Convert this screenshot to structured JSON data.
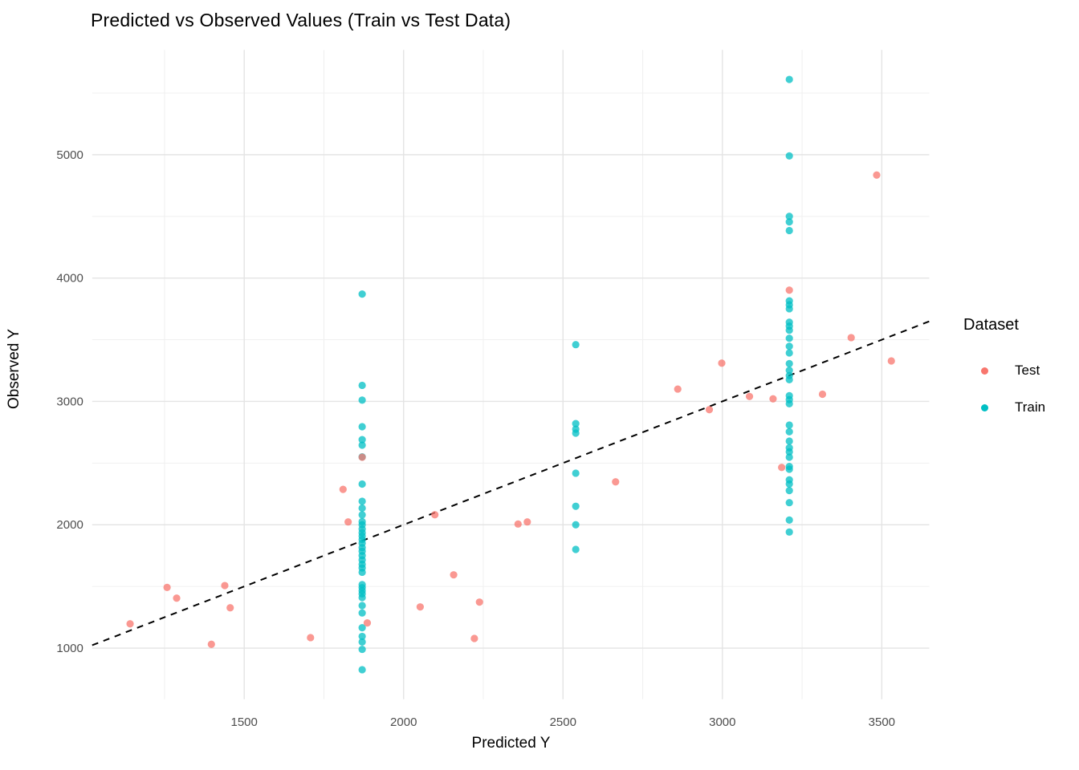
{
  "chart_data": {
    "type": "scatter",
    "title": "Predicted vs Observed Values (Train vs Test Data)",
    "xlabel": "Predicted Y",
    "ylabel": "Observed Y",
    "xlim": [
      1023,
      3649
    ],
    "ylim": [
      586,
      5849
    ],
    "x_major_ticks": [
      1500,
      2000,
      2500,
      3000,
      3500
    ],
    "x_minor_ticks": [
      1250,
      1750,
      2250,
      2750,
      3250
    ],
    "y_major_ticks": [
      1000,
      2000,
      3000,
      4000,
      5000
    ],
    "y_minor_ticks": [
      1500,
      2500,
      3500,
      4500,
      5500
    ],
    "grid": true,
    "background": "#ffffff",
    "grid_major_color": "#e4e4e4",
    "grid_minor_color": "#f0f0f0",
    "tick_label_color": "#4d4d4d",
    "reference_line": {
      "slope": 1,
      "intercept": 0,
      "style": "dashed",
      "color": "#000000"
    },
    "legend": {
      "title": "Dataset",
      "position": "right"
    },
    "series": [
      {
        "name": "Test",
        "color": "#F8766D",
        "points": [
          [
            1142,
            1197
          ],
          [
            1258,
            1492
          ],
          [
            1288,
            1405
          ],
          [
            1397,
            1031
          ],
          [
            1439,
            1507
          ],
          [
            1456,
            1327
          ],
          [
            1708,
            1085
          ],
          [
            1810,
            2287
          ],
          [
            1826,
            2023
          ],
          [
            1870,
            2548
          ],
          [
            1886,
            1204
          ],
          [
            2052,
            1334
          ],
          [
            2098,
            2081
          ],
          [
            2157,
            1594
          ],
          [
            2222,
            1078
          ],
          [
            2238,
            1373
          ],
          [
            2359,
            2006
          ],
          [
            2388,
            2023
          ],
          [
            2665,
            2348
          ],
          [
            2860,
            3100
          ],
          [
            2959,
            2933
          ],
          [
            2998,
            3310
          ],
          [
            3085,
            3040
          ],
          [
            3159,
            3021
          ],
          [
            3186,
            2465
          ],
          [
            3210,
            3902
          ],
          [
            3314,
            3058
          ],
          [
            3404,
            3517
          ],
          [
            3484,
            4835
          ],
          [
            3530,
            3328
          ]
        ]
      },
      {
        "name": "Train",
        "color": "#00BFC4",
        "points": [
          [
            1870,
            3870
          ],
          [
            1870,
            3130
          ],
          [
            1870,
            3010
          ],
          [
            1870,
            2795
          ],
          [
            1870,
            2690
          ],
          [
            1870,
            2645
          ],
          [
            1870,
            2550
          ],
          [
            1870,
            2330
          ],
          [
            1870,
            2190
          ],
          [
            1870,
            2135
          ],
          [
            1870,
            2080
          ],
          [
            1870,
            2025
          ],
          [
            1870,
            2000
          ],
          [
            1870,
            1965
          ],
          [
            1870,
            1935
          ],
          [
            1870,
            1908
          ],
          [
            1870,
            1880
          ],
          [
            1870,
            1850
          ],
          [
            1870,
            1815
          ],
          [
            1870,
            1785
          ],
          [
            1870,
            1750
          ],
          [
            1870,
            1715
          ],
          [
            1870,
            1680
          ],
          [
            1870,
            1650
          ],
          [
            1870,
            1615
          ],
          [
            1870,
            1515
          ],
          [
            1870,
            1490
          ],
          [
            1870,
            1465
          ],
          [
            1870,
            1440
          ],
          [
            1870,
            1410
          ],
          [
            1870,
            1345
          ],
          [
            1870,
            1285
          ],
          [
            1870,
            1165
          ],
          [
            1870,
            1095
          ],
          [
            1870,
            1050
          ],
          [
            1870,
            990
          ],
          [
            1870,
            825
          ],
          [
            2540,
            3460
          ],
          [
            2540,
            2820
          ],
          [
            2540,
            2775
          ],
          [
            2540,
            2743
          ],
          [
            2540,
            2418
          ],
          [
            2540,
            2150
          ],
          [
            2540,
            2000
          ],
          [
            2540,
            1800
          ],
          [
            3210,
            5610
          ],
          [
            3210,
            4990
          ],
          [
            3210,
            4500
          ],
          [
            3210,
            4455
          ],
          [
            3210,
            4385
          ],
          [
            3210,
            3815
          ],
          [
            3210,
            3783
          ],
          [
            3210,
            3751
          ],
          [
            3210,
            3642
          ],
          [
            3210,
            3610
          ],
          [
            3210,
            3577
          ],
          [
            3210,
            3512
          ],
          [
            3210,
            3447
          ],
          [
            3210,
            3393
          ],
          [
            3210,
            3306
          ],
          [
            3210,
            3252
          ],
          [
            3210,
            3209
          ],
          [
            3210,
            3176
          ],
          [
            3210,
            3046
          ],
          [
            3210,
            3014
          ],
          [
            3210,
            2981
          ],
          [
            3210,
            2808
          ],
          [
            3210,
            2754
          ],
          [
            3210,
            2678
          ],
          [
            3210,
            2624
          ],
          [
            3210,
            2591
          ],
          [
            3210,
            2548
          ],
          [
            3210,
            2472
          ],
          [
            3210,
            2450
          ],
          [
            3210,
            2364
          ],
          [
            3210,
            2331
          ],
          [
            3210,
            2277
          ],
          [
            3210,
            2179
          ],
          [
            3210,
            2038
          ],
          [
            3210,
            1941
          ]
        ]
      }
    ]
  }
}
